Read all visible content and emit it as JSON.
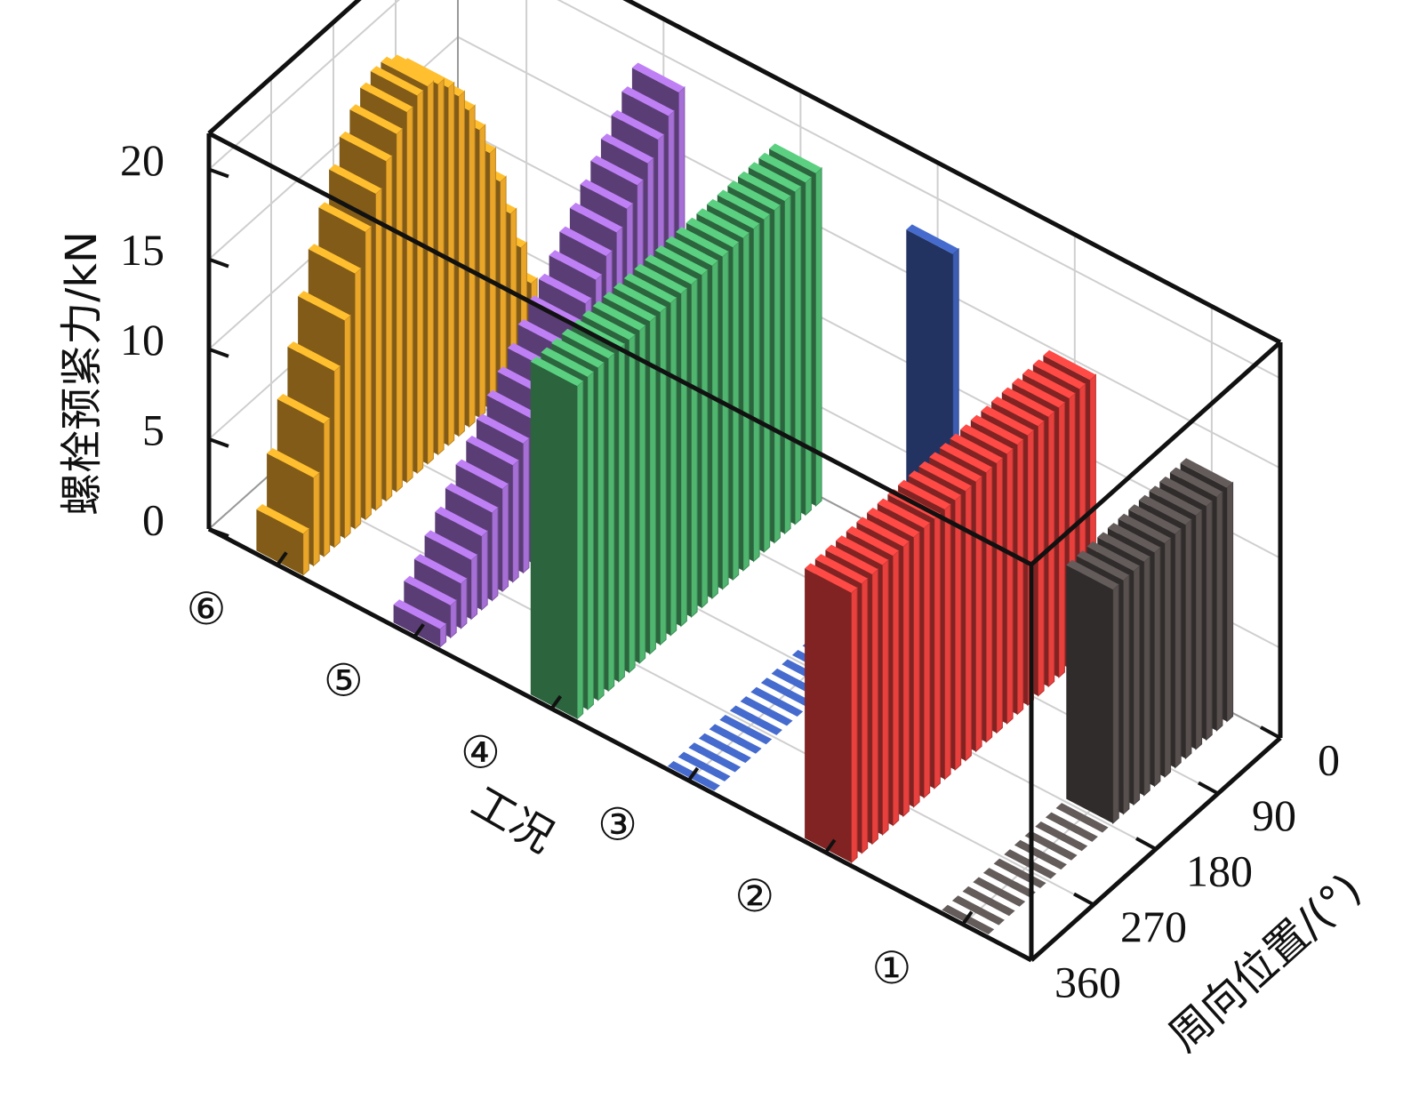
{
  "chart_data": {
    "type": "bar3d",
    "zlabel": "螺栓预紧力/kN",
    "ylabel": "工况",
    "xlabel": "周向位置/(°)",
    "categories": [
      "①",
      "②",
      "③",
      "④",
      "⑤",
      "⑥"
    ],
    "x": [
      0,
      15,
      30,
      45,
      60,
      75,
      90,
      105,
      120,
      135,
      150,
      165,
      180,
      195,
      210,
      225,
      240,
      255,
      270,
      285,
      300,
      315,
      330,
      345
    ],
    "xlim": [
      0,
      360
    ],
    "xticks": [
      0,
      90,
      180,
      270,
      360
    ],
    "zlim": [
      0,
      22
    ],
    "zticks": [
      0,
      5,
      10,
      15,
      20
    ],
    "series": [
      {
        "color": "#57504f",
        "values": [
          13,
          13,
          13,
          13,
          13,
          13,
          13,
          13,
          13,
          13,
          13,
          13,
          0,
          0,
          0,
          0,
          0,
          0,
          0,
          0,
          0,
          0,
          0,
          0
        ]
      },
      {
        "color": "#e8403d",
        "values": [
          15,
          15,
          15,
          15,
          15,
          15,
          15,
          15,
          15,
          15,
          15,
          15,
          15,
          15,
          15,
          15,
          15,
          15,
          15,
          15,
          15,
          15,
          15,
          15
        ]
      },
      {
        "color": "#3d5db3",
        "values": [
          18,
          0,
          0,
          0,
          0,
          0,
          0,
          0,
          0,
          0,
          0,
          0,
          0,
          0,
          0,
          0,
          0,
          0,
          0,
          0,
          0,
          0,
          0,
          0
        ]
      },
      {
        "color": "#4fb56f",
        "values": [
          18.5,
          18.5,
          18.5,
          18.5,
          18.5,
          18.5,
          18.5,
          18.5,
          18.5,
          18.5,
          18.5,
          18.5,
          18.5,
          18.5,
          18.5,
          18.5,
          18.5,
          18.5,
          18.5,
          18.5,
          18.5,
          18.5,
          18.5,
          18.5
        ]
      },
      {
        "color": "#a66fd6",
        "values": [
          19.0,
          18.2,
          17.4,
          16.6,
          15.9,
          15.1,
          14.3,
          13.5,
          12.7,
          11.9,
          11.2,
          10.4,
          9.6,
          8.8,
          8.0,
          7.2,
          6.5,
          5.7,
          4.9,
          4.1,
          3.3,
          2.5,
          1.8,
          1.0
        ]
      },
      {
        "color": "#eaa629",
        "values": [
          2.3,
          4.9,
          7.4,
          9.8,
          12.1,
          14.2,
          16.0,
          17.6,
          18.9,
          19.9,
          20.6,
          21.0,
          21.0,
          20.6,
          19.9,
          18.9,
          17.6,
          16.0,
          14.2,
          12.1,
          9.8,
          7.4,
          4.9,
          2.3
        ]
      }
    ]
  }
}
